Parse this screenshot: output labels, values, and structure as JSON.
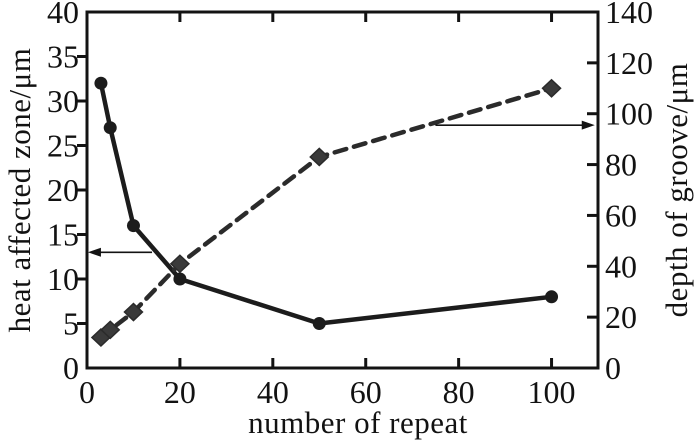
{
  "chart_data": {
    "type": "line",
    "title": "",
    "xlabel": "number of repeat",
    "ylabel_left": "heat affected zone/μm",
    "ylabel_right": "depth of groove/μm",
    "x_range": [
      0,
      110
    ],
    "x_ticks": [
      0,
      20,
      40,
      60,
      80,
      100
    ],
    "y_left_range": [
      0,
      40
    ],
    "y_left_ticks": [
      0,
      5,
      10,
      15,
      20,
      25,
      30,
      35,
      40
    ],
    "y_right_range": [
      0,
      140
    ],
    "y_right_ticks": [
      0,
      20,
      40,
      60,
      80,
      100,
      120,
      140
    ],
    "grid": false,
    "legend_position": "none",
    "series": [
      {
        "name": "heat affected zone",
        "axis": "left",
        "line_style": "solid",
        "marker": "circle",
        "color": "#1c1c1c",
        "x": [
          3,
          5,
          10,
          20,
          50,
          100
        ],
        "y": [
          32,
          27,
          16,
          10,
          5,
          8
        ]
      },
      {
        "name": "depth of groove",
        "axis": "right",
        "line_style": "dashed",
        "marker": "diamond",
        "color": "#2b2b2b",
        "x": [
          3,
          5,
          10,
          20,
          50,
          100
        ],
        "y": [
          12,
          15,
          22,
          41,
          83,
          110
        ]
      }
    ],
    "annotations": [
      {
        "type": "arrow",
        "direction": "left",
        "points_to": "left-axis",
        "axis": "left",
        "y": 13,
        "x_start": 14,
        "x_end": 0.2
      },
      {
        "type": "arrow",
        "direction": "right",
        "points_to": "right-axis",
        "axis": "right",
        "y": 95.5,
        "x_start": 75,
        "x_end": 109.3
      }
    ]
  },
  "style": {
    "background": "#ffffff",
    "axis_color": "#131313",
    "text_color": "#121212"
  }
}
